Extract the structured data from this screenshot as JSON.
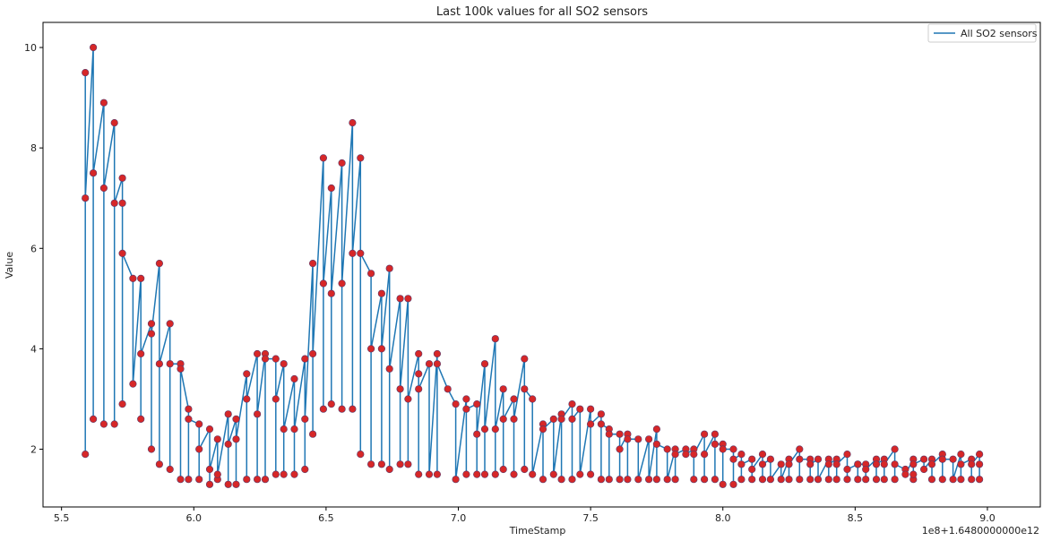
{
  "chart_data": {
    "type": "line",
    "title": "Last 100k values for all SO2 sensors",
    "xlabel": "TimeStamp",
    "ylabel": "Value",
    "offset_label": "1e8+1.6480000000e12",
    "x_scale_note": "x values in units of 1e8 ms above offset 1.648e12",
    "xlim": [
      5.43,
      9.2
    ],
    "ylim": [
      0.85,
      10.5
    ],
    "x_ticks": [
      5.5,
      6.0,
      6.5,
      7.0,
      7.5,
      8.0,
      8.5,
      9.0
    ],
    "x_tick_labels": [
      "5.5",
      "6.0",
      "6.5",
      "7.0",
      "7.5",
      "8.0",
      "8.5",
      "9.0"
    ],
    "y_ticks": [
      2,
      4,
      6,
      8,
      10
    ],
    "y_tick_labels": [
      "2",
      "4",
      "6",
      "8",
      "10"
    ],
    "grid": false,
    "legend_position": "top-right",
    "series": [
      {
        "name": "All SO2 sensors",
        "line_color": "#1f77b4",
        "marker_color": "#d62728",
        "points": [
          [
            5.59,
            9.5
          ],
          [
            5.59,
            1.9
          ],
          [
            5.59,
            7.0
          ],
          [
            5.62,
            10.0
          ],
          [
            5.62,
            2.6
          ],
          [
            5.62,
            7.5
          ],
          [
            5.66,
            8.9
          ],
          [
            5.66,
            2.5
          ],
          [
            5.66,
            7.2
          ],
          [
            5.7,
            8.5
          ],
          [
            5.7,
            2.5
          ],
          [
            5.7,
            6.9
          ],
          [
            5.73,
            7.4
          ],
          [
            5.73,
            2.9
          ],
          [
            5.73,
            6.9
          ],
          [
            5.73,
            5.9
          ],
          [
            5.77,
            5.4
          ],
          [
            5.77,
            3.3
          ],
          [
            5.8,
            5.4
          ],
          [
            5.8,
            2.6
          ],
          [
            5.8,
            3.9
          ],
          [
            5.84,
            4.5
          ],
          [
            5.84,
            2.0
          ],
          [
            5.84,
            4.3
          ],
          [
            5.87,
            5.7
          ],
          [
            5.87,
            1.7
          ],
          [
            5.87,
            3.7
          ],
          [
            5.91,
            4.5
          ],
          [
            5.91,
            1.6
          ],
          [
            5.91,
            3.7
          ],
          [
            5.95,
            3.7
          ],
          [
            5.95,
            1.4
          ],
          [
            5.95,
            3.6
          ],
          [
            5.98,
            2.8
          ],
          [
            5.98,
            1.4
          ],
          [
            5.98,
            2.6
          ],
          [
            6.02,
            2.5
          ],
          [
            6.02,
            1.4
          ],
          [
            6.02,
            2.0
          ],
          [
            6.06,
            2.4
          ],
          [
            6.06,
            1.3
          ],
          [
            6.06,
            1.6
          ],
          [
            6.09,
            2.2
          ],
          [
            6.09,
            1.4
          ],
          [
            6.09,
            1.5
          ],
          [
            6.13,
            2.7
          ],
          [
            6.13,
            1.3
          ],
          [
            6.13,
            2.1
          ],
          [
            6.16,
            2.6
          ],
          [
            6.16,
            1.3
          ],
          [
            6.16,
            2.2
          ],
          [
            6.2,
            3.5
          ],
          [
            6.2,
            1.4
          ],
          [
            6.2,
            3.0
          ],
          [
            6.24,
            3.9
          ],
          [
            6.24,
            1.4
          ],
          [
            6.24,
            2.7
          ],
          [
            6.27,
            3.9
          ],
          [
            6.27,
            1.4
          ],
          [
            6.27,
            3.8
          ],
          [
            6.31,
            3.8
          ],
          [
            6.31,
            1.5
          ],
          [
            6.31,
            3.0
          ],
          [
            6.34,
            3.7
          ],
          [
            6.34,
            1.5
          ],
          [
            6.34,
            2.4
          ],
          [
            6.38,
            3.4
          ],
          [
            6.38,
            1.5
          ],
          [
            6.38,
            2.4
          ],
          [
            6.42,
            3.8
          ],
          [
            6.42,
            1.6
          ],
          [
            6.42,
            2.6
          ],
          [
            6.45,
            5.7
          ],
          [
            6.45,
            2.3
          ],
          [
            6.45,
            3.9
          ],
          [
            6.49,
            7.8
          ],
          [
            6.49,
            2.8
          ],
          [
            6.49,
            5.3
          ],
          [
            6.52,
            7.2
          ],
          [
            6.52,
            2.9
          ],
          [
            6.52,
            5.1
          ],
          [
            6.56,
            7.7
          ],
          [
            6.56,
            2.8
          ],
          [
            6.56,
            5.3
          ],
          [
            6.6,
            8.5
          ],
          [
            6.6,
            2.8
          ],
          [
            6.6,
            5.9
          ],
          [
            6.63,
            7.8
          ],
          [
            6.63,
            1.9
          ],
          [
            6.63,
            5.9
          ],
          [
            6.67,
            5.5
          ],
          [
            6.67,
            1.7
          ],
          [
            6.67,
            4.0
          ],
          [
            6.71,
            5.1
          ],
          [
            6.71,
            1.7
          ],
          [
            6.71,
            4.0
          ],
          [
            6.74,
            5.6
          ],
          [
            6.74,
            1.6
          ],
          [
            6.74,
            3.6
          ],
          [
            6.78,
            5.0
          ],
          [
            6.78,
            1.7
          ],
          [
            6.78,
            3.2
          ],
          [
            6.81,
            5.0
          ],
          [
            6.81,
            1.7
          ],
          [
            6.81,
            3.0
          ],
          [
            6.85,
            3.9
          ],
          [
            6.85,
            1.5
          ],
          [
            6.85,
            3.5
          ],
          [
            6.85,
            3.2
          ],
          [
            6.89,
            3.7
          ],
          [
            6.89,
            1.5
          ],
          [
            6.92,
            3.9
          ],
          [
            6.92,
            1.5
          ],
          [
            6.92,
            3.7
          ],
          [
            6.96,
            3.2
          ],
          [
            6.99,
            2.9
          ],
          [
            6.99,
            1.4
          ],
          [
            7.03,
            3.0
          ],
          [
            7.03,
            1.5
          ],
          [
            7.03,
            2.8
          ],
          [
            7.07,
            2.9
          ],
          [
            7.07,
            1.5
          ],
          [
            7.07,
            2.3
          ],
          [
            7.1,
            3.7
          ],
          [
            7.1,
            1.5
          ],
          [
            7.1,
            2.4
          ],
          [
            7.14,
            4.2
          ],
          [
            7.14,
            1.5
          ],
          [
            7.14,
            2.4
          ],
          [
            7.17,
            3.2
          ],
          [
            7.17,
            1.6
          ],
          [
            7.17,
            2.6
          ],
          [
            7.21,
            3.0
          ],
          [
            7.21,
            1.5
          ],
          [
            7.21,
            2.6
          ],
          [
            7.25,
            3.8
          ],
          [
            7.25,
            1.6
          ],
          [
            7.25,
            3.2
          ],
          [
            7.28,
            3.0
          ],
          [
            7.28,
            1.5
          ],
          [
            7.32,
            2.5
          ],
          [
            7.32,
            1.4
          ],
          [
            7.32,
            2.4
          ],
          [
            7.36,
            2.6
          ],
          [
            7.36,
            1.5
          ],
          [
            7.39,
            2.7
          ],
          [
            7.39,
            1.4
          ],
          [
            7.39,
            2.6
          ],
          [
            7.43,
            2.9
          ],
          [
            7.43,
            1.4
          ],
          [
            7.43,
            2.6
          ],
          [
            7.46,
            2.8
          ],
          [
            7.46,
            1.5
          ],
          [
            7.5,
            2.8
          ],
          [
            7.5,
            1.5
          ],
          [
            7.5,
            2.5
          ],
          [
            7.54,
            2.7
          ],
          [
            7.54,
            1.4
          ],
          [
            7.54,
            2.5
          ],
          [
            7.57,
            2.4
          ],
          [
            7.57,
            1.4
          ],
          [
            7.57,
            2.3
          ],
          [
            7.61,
            2.3
          ],
          [
            7.61,
            1.4
          ],
          [
            7.61,
            2.0
          ],
          [
            7.64,
            2.3
          ],
          [
            7.64,
            1.4
          ],
          [
            7.64,
            2.2
          ],
          [
            7.68,
            2.2
          ],
          [
            7.68,
            1.4
          ],
          [
            7.72,
            2.2
          ],
          [
            7.72,
            1.4
          ],
          [
            7.75,
            2.4
          ],
          [
            7.75,
            1.4
          ],
          [
            7.75,
            2.1
          ],
          [
            7.79,
            2.0
          ],
          [
            7.79,
            1.4
          ],
          [
            7.82,
            2.0
          ],
          [
            7.82,
            1.4
          ],
          [
            7.82,
            1.9
          ],
          [
            7.86,
            2.0
          ],
          [
            7.86,
            1.9
          ],
          [
            7.89,
            2.0
          ],
          [
            7.89,
            1.4
          ],
          [
            7.89,
            1.9
          ],
          [
            7.93,
            2.3
          ],
          [
            7.93,
            1.4
          ],
          [
            7.93,
            1.9
          ],
          [
            7.97,
            2.3
          ],
          [
            7.97,
            1.4
          ],
          [
            7.97,
            2.1
          ],
          [
            8.0,
            2.1
          ],
          [
            8.0,
            1.3
          ],
          [
            8.0,
            2.0
          ],
          [
            8.04,
            2.0
          ],
          [
            8.04,
            1.3
          ],
          [
            8.04,
            1.8
          ],
          [
            8.07,
            1.9
          ],
          [
            8.07,
            1.4
          ],
          [
            8.07,
            1.7
          ],
          [
            8.11,
            1.8
          ],
          [
            8.11,
            1.4
          ],
          [
            8.11,
            1.6
          ],
          [
            8.15,
            1.9
          ],
          [
            8.15,
            1.4
          ],
          [
            8.15,
            1.7
          ],
          [
            8.18,
            1.8
          ],
          [
            8.18,
            1.4
          ],
          [
            8.22,
            1.7
          ],
          [
            8.22,
            1.4
          ],
          [
            8.25,
            1.8
          ],
          [
            8.25,
            1.4
          ],
          [
            8.25,
            1.7
          ],
          [
            8.29,
            2.0
          ],
          [
            8.29,
            1.4
          ],
          [
            8.29,
            1.8
          ],
          [
            8.33,
            1.8
          ],
          [
            8.33,
            1.4
          ],
          [
            8.33,
            1.7
          ],
          [
            8.36,
            1.8
          ],
          [
            8.36,
            1.4
          ],
          [
            8.4,
            1.8
          ],
          [
            8.4,
            1.4
          ],
          [
            8.4,
            1.7
          ],
          [
            8.43,
            1.8
          ],
          [
            8.43,
            1.4
          ],
          [
            8.43,
            1.7
          ],
          [
            8.47,
            1.9
          ],
          [
            8.47,
            1.4
          ],
          [
            8.47,
            1.6
          ],
          [
            8.51,
            1.7
          ],
          [
            8.51,
            1.4
          ],
          [
            8.51,
            1.7
          ],
          [
            8.54,
            1.7
          ],
          [
            8.54,
            1.4
          ],
          [
            8.54,
            1.6
          ],
          [
            8.58,
            1.8
          ],
          [
            8.58,
            1.4
          ],
          [
            8.58,
            1.7
          ],
          [
            8.61,
            1.8
          ],
          [
            8.61,
            1.4
          ],
          [
            8.61,
            1.7
          ],
          [
            8.65,
            2.0
          ],
          [
            8.65,
            1.4
          ],
          [
            8.65,
            1.7
          ],
          [
            8.69,
            1.6
          ],
          [
            8.69,
            1.5
          ],
          [
            8.72,
            1.8
          ],
          [
            8.72,
            1.4
          ],
          [
            8.72,
            1.5
          ],
          [
            8.72,
            1.7
          ],
          [
            8.76,
            1.8
          ],
          [
            8.76,
            1.6
          ],
          [
            8.79,
            1.8
          ],
          [
            8.79,
            1.4
          ],
          [
            8.79,
            1.7
          ],
          [
            8.83,
            1.9
          ],
          [
            8.83,
            1.4
          ],
          [
            8.83,
            1.8
          ],
          [
            8.87,
            1.8
          ],
          [
            8.87,
            1.4
          ],
          [
            8.9,
            1.9
          ],
          [
            8.9,
            1.4
          ],
          [
            8.9,
            1.7
          ],
          [
            8.94,
            1.8
          ],
          [
            8.94,
            1.4
          ],
          [
            8.94,
            1.7
          ],
          [
            8.97,
            1.9
          ],
          [
            8.97,
            1.4
          ],
          [
            8.97,
            1.7
          ]
        ]
      }
    ]
  }
}
